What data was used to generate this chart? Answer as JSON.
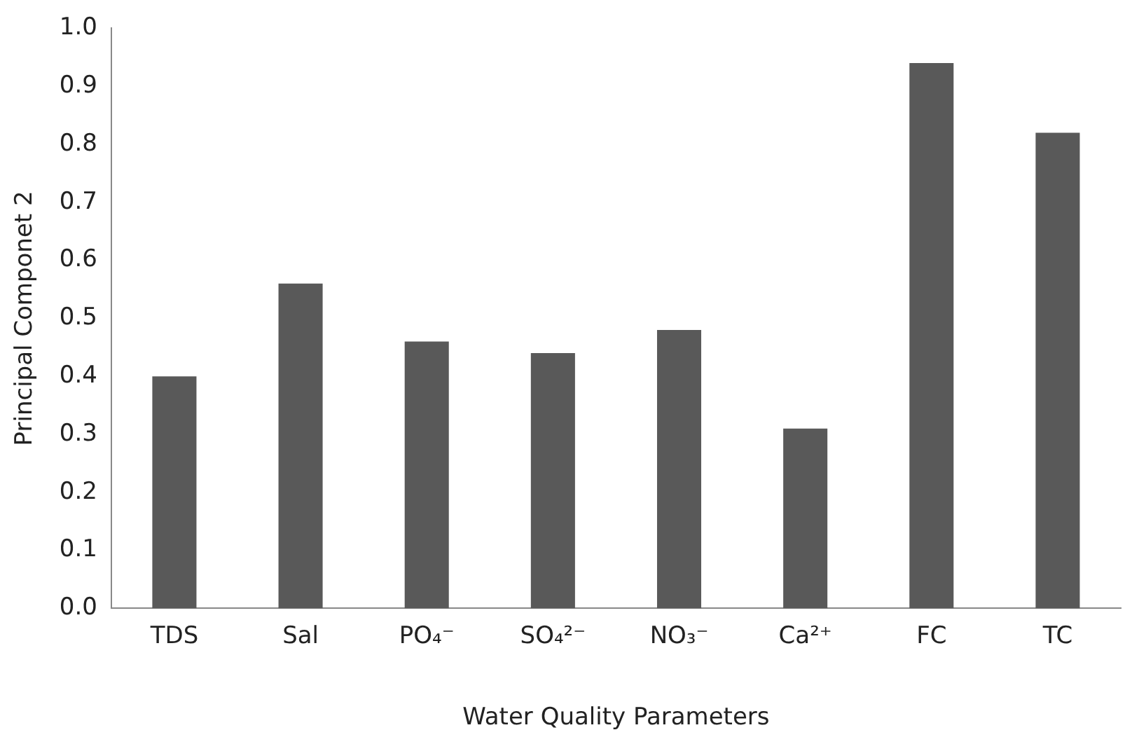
{
  "chart_data": {
    "type": "bar",
    "xlabel": "Water Quality Parameters",
    "ylabel": "Principal Componet 2",
    "categories": [
      "TDS",
      "Sal",
      "PO₄⁻",
      "SO₄²⁻",
      "NO₃⁻",
      "Ca²⁺",
      "FC",
      "TC"
    ],
    "values": [
      0.4,
      0.56,
      0.46,
      0.44,
      0.48,
      0.31,
      0.94,
      0.82
    ],
    "color": "#595959",
    "ylim": [
      0,
      1
    ],
    "yticks": [
      {
        "value": 0,
        "label": "0.0"
      },
      {
        "value": 0.1,
        "label": "0.1"
      },
      {
        "value": 0.2,
        "label": "0.2"
      },
      {
        "value": 0.3,
        "label": "0.3"
      },
      {
        "value": 0.4,
        "label": "0.4"
      },
      {
        "value": 0.5,
        "label": "0.5"
      },
      {
        "value": 0.6,
        "label": "0.6"
      },
      {
        "value": 0.7,
        "label": "0.7"
      },
      {
        "value": 0.8,
        "label": "0.8"
      },
      {
        "value": 0.9,
        "label": "0.9"
      },
      {
        "value": 1,
        "label": "1.0"
      }
    ],
    "grid": false,
    "legend": false
  }
}
